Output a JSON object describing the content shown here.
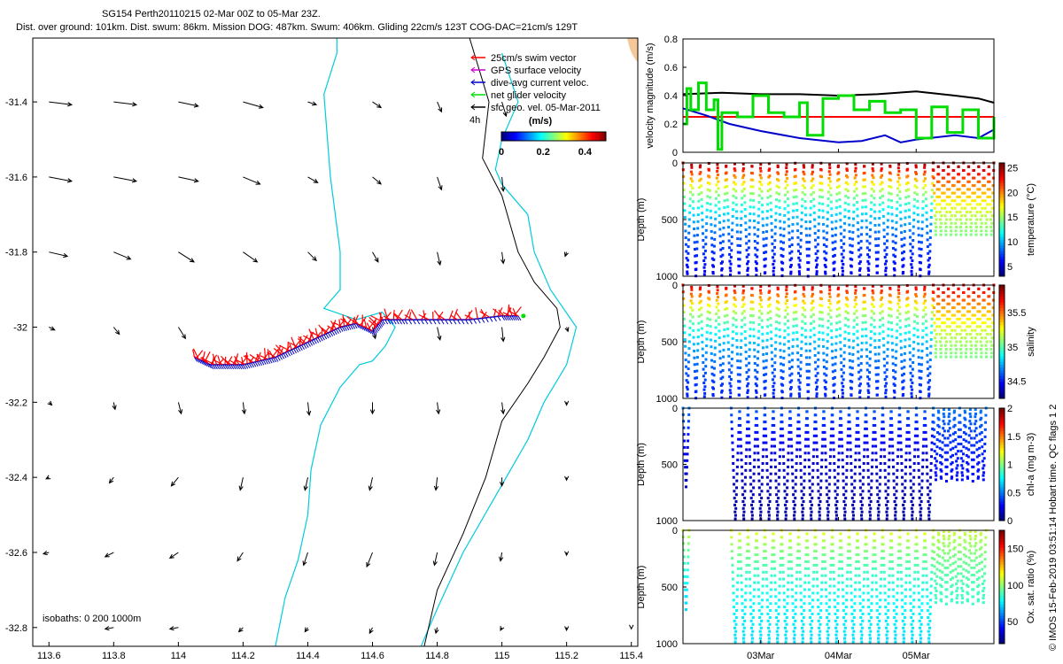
{
  "header": {
    "title": "SG154 Perth20110215 02-Mar 00Z to 05-Mar 23Z.",
    "subtitle": "Dist. over ground: 101km. Dist. swum: 86km. Mission DOG: 487km. Swum: 406km. Gliding 22cm/s 123T COG-DAC=21cm/s 129T"
  },
  "credit": "© IMOS 15-Feb-2019 03:51:14 Hobart time. QC flags 1  2",
  "colors": {
    "swim": "#ff0000",
    "gps": "#cc00cc",
    "dac": "#0000cc",
    "net": "#00dd00",
    "black": "#000000",
    "isobath": "#00ccdd",
    "coast": "#f5c89a"
  },
  "chart_data": [
    {
      "type": "map",
      "x_ticks": [
        113.6,
        113.8,
        114,
        114.2,
        114.4,
        114.6,
        114.8,
        115,
        115.2,
        115.4
      ],
      "y_ticks": [
        -31.4,
        -31.6,
        -31.8,
        -32,
        -32.2,
        -32.4,
        -32.6,
        -32.8
      ],
      "xlim": [
        113.55,
        115.42
      ],
      "ylim": [
        -32.85,
        -31.23
      ],
      "legend": {
        "items": [
          "25cm/s swim vector",
          "GPS surface velocity",
          "dive-avg current veloc.",
          "net glider velocity",
          "sfc geo. vel. 05-Mar-2011"
        ],
        "arrow_scale_label": "4h"
      },
      "colorbar": {
        "title": "(m/s)",
        "ticks": [
          "0",
          "0.2",
          "0.4"
        ],
        "range": [
          0,
          0.5
        ]
      },
      "isobath_label": "isobaths: 0   200   1000m",
      "track": [
        [
          114.05,
          -32.08
        ],
        [
          114.1,
          -32.1
        ],
        [
          114.15,
          -32.1
        ],
        [
          114.2,
          -32.1
        ],
        [
          114.25,
          -32.09
        ],
        [
          114.3,
          -32.08
        ],
        [
          114.35,
          -32.06
        ],
        [
          114.4,
          -32.04
        ],
        [
          114.45,
          -32.02
        ],
        [
          114.5,
          -32.0
        ],
        [
          114.55,
          -31.99
        ],
        [
          114.6,
          -32.01
        ],
        [
          114.63,
          -31.98
        ],
        [
          114.7,
          -31.98
        ],
        [
          114.8,
          -31.98
        ],
        [
          114.9,
          -31.98
        ],
        [
          115.0,
          -31.97
        ],
        [
          115.05,
          -31.97
        ]
      ],
      "isobath_200m": [
        [
          114.49,
          -31.23
        ],
        [
          114.49,
          -31.27
        ],
        [
          114.45,
          -31.38
        ],
        [
          114.47,
          -31.6
        ],
        [
          114.5,
          -31.8
        ],
        [
          114.5,
          -31.9
        ],
        [
          114.45,
          -31.95
        ],
        [
          114.55,
          -31.98
        ],
        [
          114.63,
          -31.96
        ],
        [
          114.67,
          -32.0
        ],
        [
          114.64,
          -32.05
        ],
        [
          114.6,
          -32.09
        ],
        [
          114.56,
          -32.1
        ],
        [
          114.5,
          -32.16
        ],
        [
          114.44,
          -32.26
        ],
        [
          114.41,
          -32.38
        ],
        [
          114.4,
          -32.5
        ],
        [
          114.37,
          -32.62
        ],
        [
          114.33,
          -32.72
        ],
        [
          114.3,
          -32.85
        ]
      ],
      "isobath_1000m": [
        [
          115.0,
          -31.27
        ],
        [
          115.05,
          -31.4
        ],
        [
          115.0,
          -31.5
        ],
        [
          114.98,
          -31.58
        ],
        [
          115.0,
          -31.62
        ],
        [
          115.08,
          -31.7
        ],
        [
          115.1,
          -31.8
        ],
        [
          115.15,
          -31.9
        ],
        [
          115.23,
          -32.0
        ],
        [
          115.2,
          -32.1
        ],
        [
          115.13,
          -32.2
        ],
        [
          115.08,
          -32.3
        ],
        [
          114.98,
          -32.45
        ],
        [
          114.88,
          -32.6
        ],
        [
          114.8,
          -32.75
        ],
        [
          114.75,
          -32.85
        ]
      ],
      "isobath_0m": [
        [
          114.9,
          -31.23
        ],
        [
          114.96,
          -31.4
        ],
        [
          114.94,
          -31.55
        ],
        [
          115.0,
          -31.65
        ],
        [
          115.05,
          -31.8
        ],
        [
          115.1,
          -31.88
        ],
        [
          115.17,
          -31.95
        ],
        [
          115.18,
          -32.0
        ],
        [
          115.13,
          -32.08
        ],
        [
          115.08,
          -32.15
        ],
        [
          115.0,
          -32.25
        ],
        [
          114.95,
          -32.4
        ],
        [
          114.88,
          -32.55
        ],
        [
          114.8,
          -32.7
        ],
        [
          114.76,
          -32.85
        ]
      ],
      "geo_vectors": [
        [
          113.6,
          -31.4,
          0.16,
          -0.02
        ],
        [
          113.8,
          -31.4,
          0.16,
          -0.02
        ],
        [
          114.0,
          -31.4,
          0.14,
          -0.03
        ],
        [
          114.2,
          -31.4,
          0.14,
          -0.04
        ],
        [
          114.4,
          -31.4,
          0.06,
          -0.02
        ],
        [
          114.6,
          -31.4,
          0.06,
          -0.04
        ],
        [
          114.8,
          -31.4,
          0.03,
          -0.07
        ],
        [
          115.0,
          -31.4,
          0.03,
          -0.1
        ],
        [
          113.6,
          -31.6,
          0.16,
          -0.03
        ],
        [
          113.8,
          -31.6,
          0.16,
          -0.03
        ],
        [
          114.0,
          -31.6,
          0.14,
          -0.03
        ],
        [
          114.2,
          -31.6,
          0.12,
          -0.05
        ],
        [
          114.4,
          -31.6,
          0.07,
          -0.04
        ],
        [
          114.6,
          -31.6,
          0.06,
          -0.05
        ],
        [
          114.8,
          -31.6,
          0.03,
          -0.09
        ],
        [
          115.0,
          -31.6,
          0.01,
          -0.1
        ],
        [
          113.6,
          -31.8,
          0.13,
          -0.03
        ],
        [
          113.8,
          -31.8,
          0.12,
          -0.05
        ],
        [
          114.0,
          -31.8,
          0.11,
          -0.07
        ],
        [
          114.2,
          -31.8,
          0.1,
          -0.07
        ],
        [
          114.4,
          -31.8,
          0.06,
          -0.06
        ],
        [
          114.6,
          -31.8,
          0.04,
          -0.07
        ],
        [
          114.8,
          -31.8,
          0.02,
          -0.09
        ],
        [
          115.0,
          -31.8,
          0.01,
          -0.08
        ],
        [
          115.2,
          -31.8,
          -0.01,
          -0.03
        ],
        [
          113.6,
          -32.0,
          0.04,
          -0.02
        ],
        [
          113.8,
          -32.0,
          0.04,
          -0.05
        ],
        [
          114.0,
          -32.0,
          0.05,
          -0.08
        ],
        [
          114.6,
          -32.0,
          0.02,
          -0.08
        ],
        [
          114.8,
          -32.0,
          0.02,
          -0.09
        ],
        [
          115.0,
          -32.0,
          0.01,
          -0.1
        ],
        [
          115.2,
          -32.0,
          0.01,
          -0.03
        ],
        [
          113.6,
          -32.2,
          0.02,
          -0.02
        ],
        [
          113.8,
          -32.2,
          0.01,
          -0.05
        ],
        [
          114.0,
          -32.2,
          0.02,
          -0.08
        ],
        [
          114.2,
          -32.2,
          0.01,
          -0.08
        ],
        [
          114.4,
          -32.2,
          0.01,
          -0.09
        ],
        [
          114.6,
          -32.2,
          0.0,
          -0.08
        ],
        [
          114.8,
          -32.2,
          0.01,
          -0.08
        ],
        [
          115.0,
          -32.2,
          0.01,
          -0.08
        ],
        [
          115.2,
          -32.2,
          0.0,
          -0.02
        ],
        [
          113.6,
          -32.4,
          -0.02,
          -0.01
        ],
        [
          113.8,
          -32.4,
          -0.03,
          -0.04
        ],
        [
          114.0,
          -32.4,
          -0.05,
          -0.06
        ],
        [
          114.2,
          -32.4,
          -0.02,
          -0.09
        ],
        [
          114.4,
          -32.4,
          -0.02,
          -0.09
        ],
        [
          114.6,
          -32.4,
          -0.02,
          -0.09
        ],
        [
          114.8,
          -32.4,
          -0.01,
          -0.09
        ],
        [
          115.0,
          -32.4,
          0.0,
          -0.06
        ],
        [
          115.2,
          -32.4,
          0.0,
          -0.02
        ],
        [
          113.6,
          -32.6,
          -0.04,
          -0.01
        ],
        [
          113.8,
          -32.6,
          -0.06,
          -0.03
        ],
        [
          114.0,
          -32.6,
          -0.06,
          -0.04
        ],
        [
          114.2,
          -32.6,
          -0.04,
          -0.06
        ],
        [
          114.4,
          -32.6,
          -0.03,
          -0.09
        ],
        [
          114.6,
          -32.6,
          -0.04,
          -0.1
        ],
        [
          114.8,
          -32.6,
          -0.02,
          -0.09
        ],
        [
          115.0,
          -32.6,
          -0.01,
          -0.06
        ],
        [
          115.2,
          -32.6,
          0.0,
          -0.02
        ],
        [
          113.8,
          -32.8,
          -0.06,
          -0.01
        ],
        [
          114.0,
          -32.8,
          -0.06,
          -0.01
        ],
        [
          114.2,
          -32.8,
          -0.03,
          -0.03
        ],
        [
          114.4,
          -32.8,
          -0.02,
          -0.03
        ],
        [
          114.6,
          -32.8,
          -0.02,
          -0.04
        ],
        [
          114.8,
          -32.8,
          -0.01,
          -0.04
        ],
        [
          115.0,
          -32.8,
          -0.01,
          -0.02
        ],
        [
          115.2,
          -32.8,
          0.0,
          -0.02
        ],
        [
          115.4,
          -32.8,
          0.0,
          -0.01
        ]
      ]
    },
    {
      "type": "line",
      "ylabel": "velocity magnitude (m/s)",
      "ylim": [
        0,
        0.8
      ],
      "y_ticks": [
        "0",
        "0.2",
        "0.4",
        "0.6",
        "0.8"
      ],
      "x_range_days": [
        0,
        4
      ],
      "series": [
        {
          "name": "net glider velocity",
          "color": "#000000",
          "t": [
            0,
            0.5,
            1.0,
            1.5,
            2.0,
            2.5,
            3.0,
            3.5,
            3.8,
            4.0
          ],
          "values": [
            0.41,
            0.42,
            0.41,
            0.41,
            0.4,
            0.41,
            0.43,
            0.4,
            0.38,
            0.35
          ]
        },
        {
          "name": "25cm/s swim",
          "color": "#ff0000",
          "t": [
            0,
            4.0
          ],
          "values": [
            0.25,
            0.25
          ]
        },
        {
          "name": "dive-avg current",
          "color": "#0000cc",
          "t": [
            0,
            0.3,
            0.6,
            1.0,
            1.5,
            2.0,
            2.3,
            2.6,
            2.8,
            3.0,
            3.5,
            3.8,
            4.0
          ],
          "values": [
            0.31,
            0.26,
            0.2,
            0.15,
            0.1,
            0.07,
            0.08,
            0.12,
            0.07,
            0.09,
            0.12,
            0.1,
            0.16
          ]
        },
        {
          "name": "GPS surface velocity",
          "color": "#00dd00",
          "t": [
            0,
            0.05,
            0.1,
            0.2,
            0.3,
            0.4,
            0.45,
            0.5,
            0.7,
            0.9,
            1.1,
            1.3,
            1.5,
            1.6,
            1.8,
            2.0,
            2.2,
            2.4,
            2.6,
            2.8,
            3.0,
            3.2,
            3.4,
            3.6,
            3.8,
            4.0
          ],
          "values": [
            0.2,
            0.45,
            0.3,
            0.49,
            0.3,
            0.37,
            0.02,
            0.28,
            0.25,
            0.4,
            0.28,
            0.25,
            0.35,
            0.12,
            0.38,
            0.4,
            0.3,
            0.36,
            0.28,
            0.3,
            0.1,
            0.32,
            0.14,
            0.3,
            0.1,
            0.25
          ]
        }
      ]
    },
    {
      "type": "scatter",
      "ylabel": "Depth (m)",
      "ylim": [
        1000,
        0
      ],
      "y_ticks": [
        "0",
        "500",
        "1000"
      ],
      "colorbar_label": "temperature (°C)",
      "colorbar_range": [
        3,
        26
      ],
      "colorbar_ticks": [
        "5",
        "10",
        "15",
        "20",
        "25"
      ],
      "profile": {
        "t_start": 0.0,
        "t_end": 3.22,
        "cycles": 29,
        "max_depth": 1000,
        "surface_value": 26,
        "deep_value": 4
      },
      "shallow_profile": {
        "t_start": 3.22,
        "t_end": 4.0,
        "cycles": 12,
        "max_depth": 650
      }
    },
    {
      "type": "scatter",
      "ylabel": "Depth (m)",
      "ylim": [
        1000,
        0
      ],
      "y_ticks": [
        "0",
        "500",
        "1000"
      ],
      "colorbar_label": "salinity",
      "colorbar_range": [
        34.25,
        35.9
      ],
      "colorbar_ticks": [
        "34.5",
        "35",
        "35.5"
      ],
      "profile": {
        "t_start": 0.0,
        "t_end": 3.22,
        "cycles": 29,
        "max_depth": 1000,
        "surface_value": 35.8,
        "deep_value": 34.4
      },
      "shallow_profile": {
        "t_start": 3.22,
        "t_end": 4.0,
        "cycles": 12,
        "max_depth": 650
      }
    },
    {
      "type": "scatter",
      "ylabel": "Depth (m)",
      "ylim": [
        1000,
        0
      ],
      "y_ticks": [
        "0",
        "500",
        "1000"
      ],
      "colorbar_label": "chl-a (mg m-3)",
      "colorbar_range": [
        0,
        2
      ],
      "colorbar_ticks": [
        "0",
        "0.5",
        "1",
        "1.5",
        "2"
      ],
      "profile": {
        "t_start": 0.0,
        "t_end": 0.08,
        "cycles": 1,
        "max_depth": 700,
        "surface_value": 0.5,
        "deep_value": 0.05
      },
      "main_profile": {
        "t_start": 0.62,
        "t_end": 3.22,
        "cycles": 24,
        "max_depth": 1000,
        "surface_value": 0.45,
        "deep_value": 0.05
      },
      "shallow_profile": {
        "t_start": 3.22,
        "t_end": 3.9,
        "cycles": 10,
        "max_depth": 650
      }
    },
    {
      "type": "scatter",
      "ylabel": "Depth (m)",
      "ylim": [
        1000,
        0
      ],
      "y_ticks": [
        "0",
        "500",
        "1000"
      ],
      "colorbar_label": "Ox. sat. ratio (%)",
      "colorbar_range": [
        20,
        175
      ],
      "colorbar_ticks": [
        "50",
        "100",
        "150"
      ],
      "profile": {
        "t_start": 0.0,
        "t_end": 0.08,
        "cycles": 1,
        "max_depth": 700,
        "surface_value": 110,
        "deep_value": 65
      },
      "main_profile": {
        "t_start": 0.62,
        "t_end": 3.22,
        "cycles": 24,
        "max_depth": 1000,
        "surface_value": 115,
        "deep_value": 70
      },
      "shallow_profile": {
        "t_start": 3.22,
        "t_end": 3.9,
        "cycles": 10,
        "max_depth": 650
      }
    }
  ],
  "time_axis": {
    "ticks": [
      "03Mar",
      "04Mar",
      "05Mar"
    ],
    "tick_days": [
      1,
      2,
      3
    ]
  }
}
